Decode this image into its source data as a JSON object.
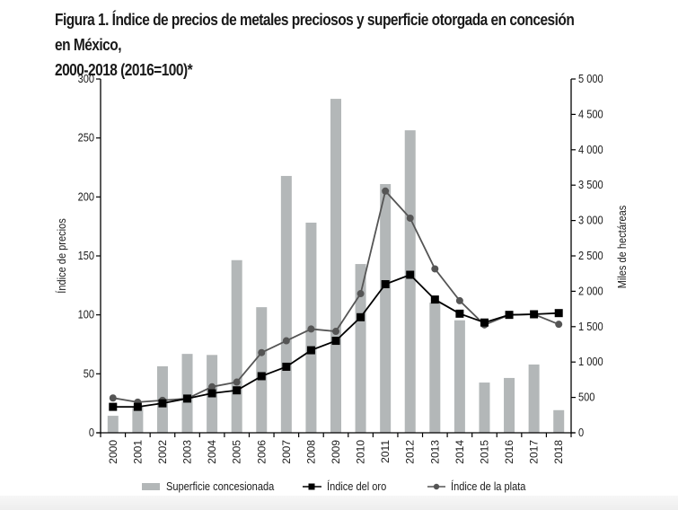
{
  "figure": {
    "title_line1": "Figura 1. Índice de precios de metales preciosos y superficie otorgada en concesión en México,",
    "title_line2": "2000-2018 (2016=100)*"
  },
  "colors": {
    "bars": "#b3b7b8",
    "gold_line": "#000000",
    "silver_line": "#555555"
  },
  "chart_data": {
    "type": "bar+line",
    "title": "Figura 1. Índice de precios de metales preciosos y superficie otorgada en concesión en México, 2000-2018 (2016=100)*",
    "categories": [
      "2000",
      "2001",
      "2002",
      "2003",
      "2004",
      "2005",
      "2006",
      "2007",
      "2008",
      "2009",
      "2010",
      "2011",
      "2012",
      "2013",
      "2014",
      "2015",
      "2016",
      "2017",
      "2018"
    ],
    "y_left": {
      "label": "Índice de precios",
      "range": [
        0,
        300
      ],
      "ticks": [
        0,
        50,
        100,
        150,
        200,
        250,
        300
      ],
      "tick_labels": [
        "0",
        "50",
        "100",
        "150",
        "200",
        "250",
        "300"
      ]
    },
    "y_right": {
      "label": "Miles de hectáreas",
      "range": [
        0,
        5000
      ],
      "ticks": [
        0,
        500,
        1000,
        1500,
        2000,
        2500,
        3000,
        3500,
        4000,
        4500,
        5000
      ],
      "tick_labels": [
        "0",
        "500",
        "1 000",
        "1 500",
        "2 000",
        "2 500",
        "3 000",
        "3 500",
        "4 000",
        "4 500",
        "5 000"
      ]
    },
    "series": [
      {
        "name": "Superficie concesionada",
        "type": "bar",
        "axis": "right",
        "values": [
          240,
          370,
          940,
          1115,
          1100,
          2440,
          1775,
          3630,
          2970,
          4720,
          2385,
          3515,
          4275,
          1840,
          1590,
          710,
          775,
          965,
          320
        ]
      },
      {
        "name": "Índice del oro",
        "type": "line",
        "marker": "square",
        "axis": "left",
        "values": [
          22,
          22,
          25,
          29,
          33.5,
          36,
          48,
          56,
          70,
          78,
          98,
          126,
          134,
          113,
          101,
          93.5,
          100,
          100.5,
          101.5
        ]
      },
      {
        "name": "Índice de la plata",
        "type": "line",
        "marker": "circle",
        "axis": "left",
        "values": [
          29.5,
          26,
          27.5,
          29,
          39,
          43,
          68,
          78,
          88,
          86,
          118,
          205,
          182,
          139,
          112,
          91.5,
          100,
          100.5,
          92
        ]
      }
    ],
    "legend": {
      "position": "bottom",
      "items": [
        "Superficie concesionada",
        "Índice del oro",
        "Índice de la plata"
      ]
    },
    "grid": false
  }
}
